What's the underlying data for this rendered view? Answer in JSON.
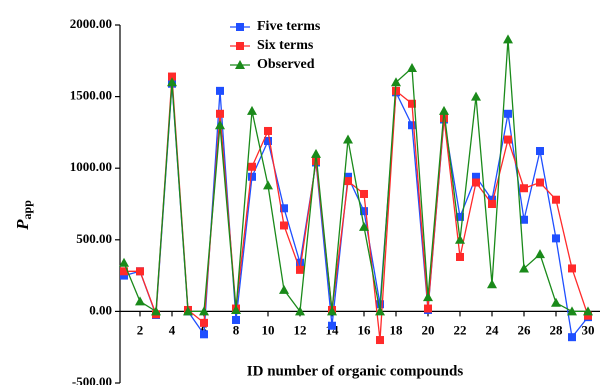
{
  "chart_data": {
    "type": "line",
    "x_label": "ID number of organic compounds",
    "y_label": "P",
    "y_label_sub": "app",
    "x": [
      1,
      2,
      3,
      4,
      5,
      6,
      7,
      8,
      9,
      10,
      11,
      12,
      13,
      14,
      15,
      16,
      17,
      18,
      19,
      20,
      21,
      22,
      23,
      24,
      25,
      26,
      27,
      28,
      29,
      30
    ],
    "xlim": [
      0.75,
      30.75
    ],
    "xticks": [
      2,
      4,
      6,
      8,
      10,
      12,
      14,
      16,
      18,
      20,
      22,
      24,
      26,
      28,
      30
    ],
    "ylim": [
      -500,
      2000
    ],
    "yticks": [
      {
        "value": -500,
        "label": "-500.00"
      },
      {
        "value": 0,
        "label": "0.00"
      },
      {
        "value": 500,
        "label": "500.00"
      },
      {
        "value": 1000,
        "label": "1000.00"
      },
      {
        "value": 1500,
        "label": "1500.00"
      },
      {
        "value": 2000,
        "label": "2000.00"
      }
    ],
    "series": [
      {
        "name": "Five terms",
        "color": "#1f4fff",
        "marker": "square",
        "values": [
          250,
          280,
          -25,
          1590,
          0,
          -160,
          1540,
          -60,
          940,
          1190,
          720,
          340,
          1040,
          -100,
          940,
          700,
          50,
          1530,
          1300,
          10,
          1340,
          660,
          940,
          780,
          1380,
          640,
          1120,
          510,
          -180,
          -40
        ]
      },
      {
        "name": "Six terms",
        "color": "#ff2a2a",
        "marker": "square",
        "values": [
          280,
          280,
          -20,
          1640,
          10,
          -80,
          1380,
          20,
          1010,
          1260,
          600,
          290,
          1050,
          10,
          910,
          820,
          -200,
          1540,
          1450,
          20,
          1350,
          380,
          900,
          750,
          1200,
          860,
          900,
          780,
          300,
          -30
        ]
      },
      {
        "name": "Observed",
        "color": "#1a8a1a",
        "marker": "triangle",
        "values": [
          340,
          70,
          0,
          1600,
          0,
          0,
          1300,
          10,
          1400,
          880,
          150,
          0,
          1100,
          0,
          1200,
          590,
          0,
          1600,
          1700,
          100,
          1400,
          500,
          1500,
          190,
          1900,
          300,
          400,
          60,
          0,
          0
        ]
      }
    ]
  }
}
